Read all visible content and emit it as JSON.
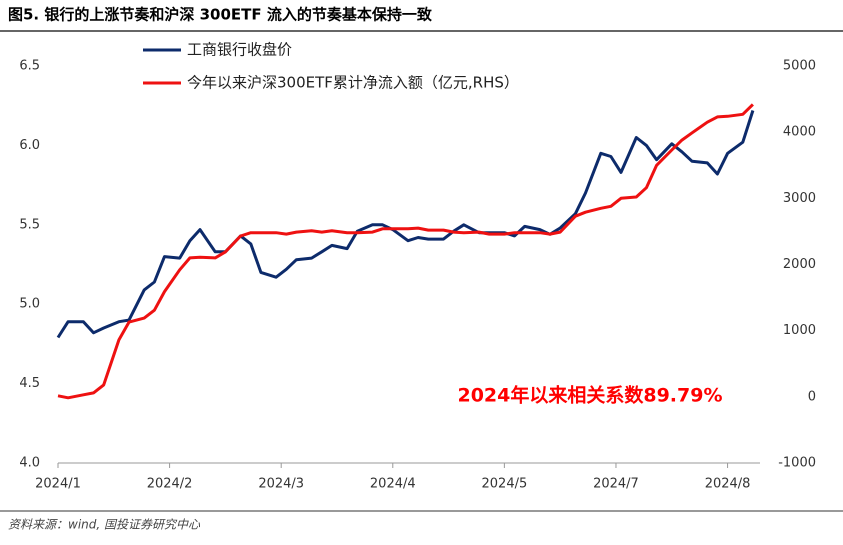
{
  "chart_data": {
    "type": "line",
    "title": "图5. 银行的上涨节奏和沪深 300ETF 流入的节奏基本保持一致",
    "source": "资料来源：wind, 国投证券研究中心",
    "annotation": "2024年以来相关系数89.79%",
    "annotation_color": "#ff0000",
    "x": [
      0,
      2,
      5,
      7,
      9,
      12,
      14,
      17,
      19,
      21,
      24,
      26,
      28,
      31,
      33,
      36,
      38,
      40,
      43,
      45,
      47,
      50,
      52,
      54,
      57,
      59,
      62,
      64,
      66,
      69,
      71,
      73,
      76,
      78,
      80,
      83,
      85,
      88,
      90,
      92,
      95,
      97,
      99,
      102,
      104,
      107,
      109,
      111,
      114,
      116,
      118,
      121,
      123,
      125,
      128,
      130,
      132,
      135,
      137
    ],
    "xlim": [
      0,
      138
    ],
    "xticks": [
      {
        "value": 0,
        "label": "2024/1"
      },
      {
        "value": 22,
        "label": "2024/2"
      },
      {
        "value": 44,
        "label": "2024/3"
      },
      {
        "value": 66,
        "label": "2024/4"
      },
      {
        "value": 88,
        "label": "2024/5"
      },
      {
        "value": 110,
        "label": "2024/7"
      },
      {
        "value": 132,
        "label": "2024/8"
      }
    ],
    "ylim": [
      4.0,
      6.5
    ],
    "yticks": [
      {
        "value": 4,
        "label": "4.0"
      },
      4.5,
      {
        "value": 5,
        "label": "5.0"
      },
      5.5,
      {
        "value": 6,
        "label": "6.0"
      },
      6.5
    ],
    "y2lim": [
      -1000,
      5000
    ],
    "y2ticks": [
      -1000,
      0,
      1000,
      2000,
      3000,
      4000,
      5000
    ],
    "legend": "top-left",
    "series": [
      {
        "name": "工商银行收盘价",
        "color": "#0d2b6b",
        "axis": "y",
        "values": [
          4.79,
          4.89,
          4.89,
          4.82,
          4.85,
          4.89,
          4.9,
          5.09,
          5.14,
          5.3,
          5.29,
          5.4,
          5.47,
          5.33,
          5.33,
          5.43,
          5.38,
          5.2,
          5.17,
          5.22,
          5.28,
          5.29,
          5.33,
          5.37,
          5.35,
          5.46,
          5.5,
          5.5,
          5.47,
          5.4,
          5.42,
          5.41,
          5.41,
          5.46,
          5.5,
          5.45,
          5.45,
          5.45,
          5.43,
          5.49,
          5.47,
          5.44,
          5.48,
          5.57,
          5.7,
          5.95,
          5.93,
          5.83,
          6.05,
          6.0,
          5.91,
          6.01,
          5.96,
          5.9,
          5.89,
          5.82,
          5.95,
          6.02,
          6.22
        ]
      },
      {
        "name": "今年以来沪深300ETF累计净流入额（亿元,RHS）",
        "color": "#ee1111",
        "axis": "y2",
        "values": [
          15,
          -15,
          30,
          60,
          180,
          860,
          1130,
          1190,
          1310,
          1590,
          1920,
          2100,
          2110,
          2100,
          2190,
          2430,
          2480,
          2480,
          2480,
          2460,
          2490,
          2510,
          2490,
          2510,
          2480,
          2480,
          2490,
          2540,
          2540,
          2540,
          2550,
          2520,
          2520,
          2490,
          2480,
          2490,
          2460,
          2460,
          2480,
          2480,
          2480,
          2460,
          2490,
          2730,
          2790,
          2850,
          2880,
          3000,
          3020,
          3160,
          3500,
          3730,
          3880,
          3990,
          4150,
          4230,
          4240,
          4270,
          4420
        ]
      }
    ]
  }
}
